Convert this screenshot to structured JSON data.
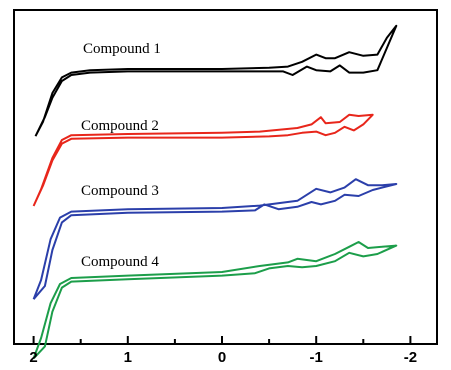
{
  "chart_data": {
    "type": "line",
    "title": "",
    "xlabel": "",
    "ylabel": "",
    "x_reversed": true,
    "xlim": [
      2.0,
      -2.2
    ],
    "x_ticks": [
      "2",
      "1",
      "0",
      "-1",
      "-2"
    ],
    "y_ticks_labeled": false,
    "grid": false,
    "legend": "inline labels above each trace",
    "series": [
      {
        "name": "Compound 1",
        "color": "#000000",
        "upper": [
          [
            1.98,
            -5.6
          ],
          [
            1.9,
            -4.4
          ],
          [
            1.8,
            -2.0
          ],
          [
            1.7,
            -0.7
          ],
          [
            1.6,
            -0.3
          ],
          [
            1.4,
            -0.1
          ],
          [
            1.0,
            0
          ],
          [
            0.0,
            0
          ],
          [
            -0.5,
            0.1
          ],
          [
            -0.7,
            0.2
          ],
          [
            -0.85,
            0.6
          ],
          [
            -1.0,
            1.2
          ],
          [
            -1.1,
            0.9
          ],
          [
            -1.2,
            0.9
          ],
          [
            -1.35,
            1.4
          ],
          [
            -1.5,
            1.1
          ],
          [
            -1.65,
            1.2
          ],
          [
            -1.75,
            2.6
          ],
          [
            -1.85,
            3.6
          ]
        ],
        "lower": [
          [
            1.98,
            -5.6
          ],
          [
            1.88,
            -4.0
          ],
          [
            1.8,
            -2.4
          ],
          [
            1.7,
            -1.0
          ],
          [
            1.6,
            -0.5
          ],
          [
            1.4,
            -0.3
          ],
          [
            1.0,
            -0.2
          ],
          [
            0.0,
            -0.2
          ],
          [
            -0.5,
            -0.2
          ],
          [
            -0.65,
            -0.2
          ],
          [
            -0.75,
            -0.5
          ],
          [
            -0.9,
            0.2
          ],
          [
            -1.0,
            -0.1
          ],
          [
            -1.15,
            -0.2
          ],
          [
            -1.25,
            0.3
          ],
          [
            -1.35,
            -0.3
          ],
          [
            -1.5,
            -0.3
          ],
          [
            -1.65,
            -0.1
          ],
          [
            -1.85,
            3.6
          ]
        ]
      },
      {
        "name": "Compound 2",
        "color": "#e8261b",
        "upper": [
          [
            2.0,
            -6.0
          ],
          [
            1.92,
            -4.6
          ],
          [
            1.8,
            -2.0
          ],
          [
            1.7,
            -0.5
          ],
          [
            1.6,
            -0.1
          ],
          [
            1.0,
            0
          ],
          [
            0.0,
            0.1
          ],
          [
            -0.4,
            0.2
          ],
          [
            -0.8,
            0.5
          ],
          [
            -0.95,
            0.8
          ],
          [
            -1.05,
            1.4
          ],
          [
            -1.1,
            0.9
          ],
          [
            -1.25,
            1.0
          ],
          [
            -1.35,
            1.6
          ],
          [
            -1.45,
            1.5
          ],
          [
            -1.6,
            1.6
          ]
        ],
        "lower": [
          [
            2.0,
            -6.0
          ],
          [
            1.9,
            -4.3
          ],
          [
            1.8,
            -2.2
          ],
          [
            1.7,
            -0.8
          ],
          [
            1.6,
            -0.4
          ],
          [
            1.0,
            -0.3
          ],
          [
            0.0,
            -0.3
          ],
          [
            -0.5,
            -0.2
          ],
          [
            -0.7,
            -0.1
          ],
          [
            -0.85,
            0.1
          ],
          [
            -1.0,
            0.2
          ],
          [
            -1.1,
            -0.1
          ],
          [
            -1.2,
            0.1
          ],
          [
            -1.3,
            0.6
          ],
          [
            -1.4,
            0.3
          ],
          [
            -1.5,
            0.8
          ],
          [
            -1.6,
            1.6
          ]
        ]
      },
      {
        "name": "Compound 3",
        "color": "#2b3faa",
        "upper": [
          [
            2.0,
            -7.6
          ],
          [
            1.92,
            -6.0
          ],
          [
            1.82,
            -2.6
          ],
          [
            1.72,
            -0.8
          ],
          [
            1.6,
            -0.3
          ],
          [
            1.0,
            -0.1
          ],
          [
            0.0,
            0
          ],
          [
            -0.4,
            0.2
          ],
          [
            -0.8,
            0.6
          ],
          [
            -1.0,
            1.6
          ],
          [
            -1.15,
            1.3
          ],
          [
            -1.3,
            1.7
          ],
          [
            -1.42,
            2.4
          ],
          [
            -1.55,
            1.9
          ],
          [
            -1.7,
            1.9
          ],
          [
            -1.85,
            2.0
          ]
        ],
        "lower": [
          [
            2.0,
            -7.6
          ],
          [
            1.88,
            -6.5
          ],
          [
            1.8,
            -3.5
          ],
          [
            1.7,
            -1.2
          ],
          [
            1.6,
            -0.6
          ],
          [
            1.0,
            -0.4
          ],
          [
            0.0,
            -0.3
          ],
          [
            -0.35,
            -0.2
          ],
          [
            -0.45,
            0.3
          ],
          [
            -0.6,
            -0.1
          ],
          [
            -0.8,
            0.1
          ],
          [
            -0.95,
            0.5
          ],
          [
            -1.05,
            0.3
          ],
          [
            -1.2,
            0.6
          ],
          [
            -1.3,
            1.1
          ],
          [
            -1.45,
            1.0
          ],
          [
            -1.6,
            1.5
          ],
          [
            -1.85,
            2.0
          ]
        ]
      },
      {
        "name": "Compound 4",
        "color": "#1c9e4a",
        "upper": [
          [
            2.0,
            -7.2
          ],
          [
            1.92,
            -5.5
          ],
          [
            1.82,
            -2.6
          ],
          [
            1.72,
            -1.0
          ],
          [
            1.6,
            -0.5
          ],
          [
            1.0,
            -0.3
          ],
          [
            0.0,
            0
          ],
          [
            -0.4,
            0.5
          ],
          [
            -0.7,
            0.8
          ],
          [
            -0.8,
            1.1
          ],
          [
            -1.0,
            0.9
          ],
          [
            -1.2,
            1.5
          ],
          [
            -1.35,
            2.1
          ],
          [
            -1.45,
            2.5
          ],
          [
            -1.55,
            2.0
          ],
          [
            -1.7,
            2.1
          ],
          [
            -1.85,
            2.2
          ]
        ],
        "lower": [
          [
            2.0,
            -7.2
          ],
          [
            1.88,
            -6.2
          ],
          [
            1.8,
            -3.3
          ],
          [
            1.7,
            -1.3
          ],
          [
            1.6,
            -0.8
          ],
          [
            1.0,
            -0.6
          ],
          [
            0.0,
            -0.3
          ],
          [
            -0.35,
            -0.1
          ],
          [
            -0.5,
            0.3
          ],
          [
            -0.7,
            0.5
          ],
          [
            -0.85,
            0.4
          ],
          [
            -1.0,
            0.5
          ],
          [
            -1.2,
            0.9
          ],
          [
            -1.35,
            1.6
          ],
          [
            -1.5,
            1.3
          ],
          [
            -1.65,
            1.5
          ],
          [
            -1.85,
            2.2
          ]
        ]
      }
    ]
  }
}
